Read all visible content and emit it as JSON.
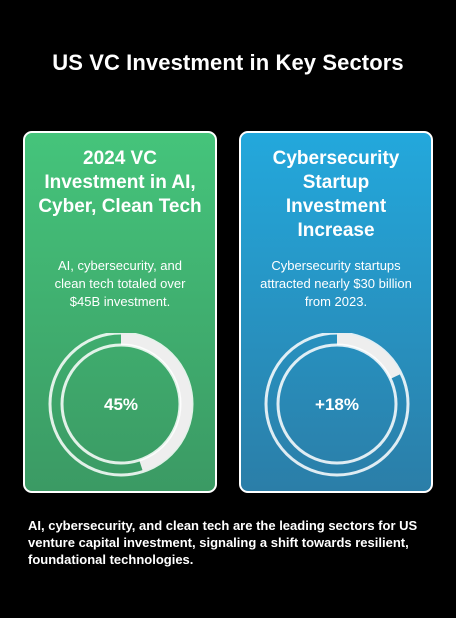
{
  "title": "US VC Investment in Key Sectors",
  "chart_data": [
    {
      "type": "pie",
      "title": "2024 VC Investment in AI, Cyber, Clean Tech",
      "description": "AI, cybersecurity, and clean tech totaled over $45B investment.",
      "value": 45,
      "max": 100,
      "label": "45%"
    },
    {
      "type": "pie",
      "title": "Cybersecurity Startup Investment Increase",
      "description": "Cybersecurity startups attracted nearly $30 billion from 2023.",
      "value": 18,
      "max": 100,
      "label": "+18%"
    }
  ],
  "footnote": "AI, cybersecurity, and clean tech are the leading sectors for US venture capital investment, signaling a shift towards resilient, foundational technologies.",
  "colors": {
    "background": "#000000",
    "card_left_top": "#45c47b",
    "card_left_bottom": "#3b9a64",
    "card_right_top": "#23a8dc",
    "card_right_bottom": "#2b7ea8",
    "gauge_fill": "#eeeeee"
  }
}
